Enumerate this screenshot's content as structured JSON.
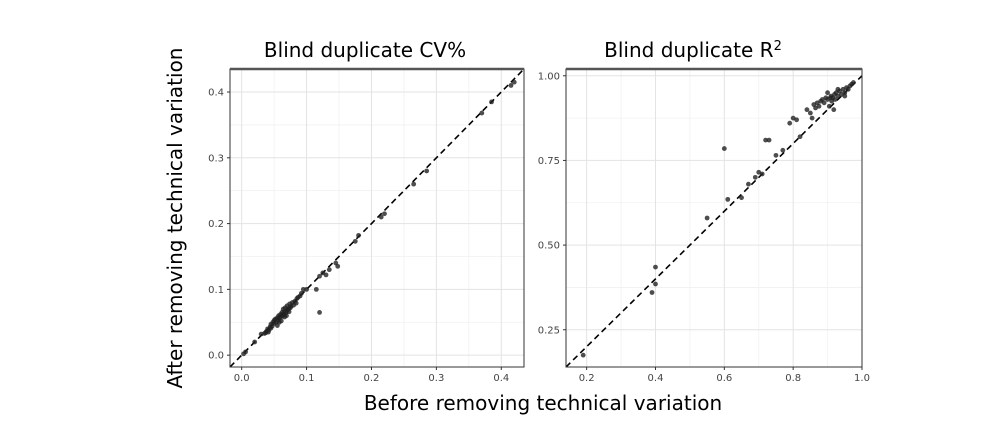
{
  "xlabel": "Before removing technical variation",
  "ylabel": "After removing technical variation",
  "chart_data": [
    {
      "type": "scatter",
      "title": "Blind duplicate CV%",
      "xlim": [
        -0.018,
        0.435
      ],
      "ylim": [
        -0.018,
        0.435
      ],
      "xticks": [
        0.0,
        0.1,
        0.2,
        0.3,
        0.4
      ],
      "yticks": [
        0.0,
        0.1,
        0.2,
        0.3,
        0.4
      ],
      "xtick_labels": [
        "0.0",
        "0.1",
        "0.2",
        "0.3",
        "0.4"
      ],
      "ytick_labels": [
        "0.0",
        "0.1",
        "0.2",
        "0.3",
        "0.4"
      ],
      "reference_line": "y = x",
      "grid": true,
      "points": [
        [
          0.003,
          0.002
        ],
        [
          0.006,
          0.005
        ],
        [
          0.02,
          0.02
        ],
        [
          0.03,
          0.032
        ],
        [
          0.035,
          0.033
        ],
        [
          0.038,
          0.036
        ],
        [
          0.04,
          0.04
        ],
        [
          0.042,
          0.038
        ],
        [
          0.044,
          0.043
        ],
        [
          0.045,
          0.047
        ],
        [
          0.047,
          0.044
        ],
        [
          0.048,
          0.05
        ],
        [
          0.05,
          0.048
        ],
        [
          0.05,
          0.053
        ],
        [
          0.052,
          0.055
        ],
        [
          0.053,
          0.05
        ],
        [
          0.055,
          0.057
        ],
        [
          0.056,
          0.053
        ],
        [
          0.057,
          0.06
        ],
        [
          0.058,
          0.056
        ],
        [
          0.06,
          0.062
        ],
        [
          0.06,
          0.058
        ],
        [
          0.062,
          0.065
        ],
        [
          0.063,
          0.06
        ],
        [
          0.064,
          0.07
        ],
        [
          0.065,
          0.062
        ],
        [
          0.066,
          0.066
        ],
        [
          0.067,
          0.072
        ],
        [
          0.068,
          0.064
        ],
        [
          0.07,
          0.075
        ],
        [
          0.07,
          0.068
        ],
        [
          0.072,
          0.07
        ],
        [
          0.074,
          0.078
        ],
        [
          0.075,
          0.072
        ],
        [
          0.076,
          0.074
        ],
        [
          0.078,
          0.08
        ],
        [
          0.08,
          0.076
        ],
        [
          0.082,
          0.082
        ],
        [
          0.084,
          0.079
        ],
        [
          0.085,
          0.086
        ],
        [
          0.087,
          0.088
        ],
        [
          0.09,
          0.09
        ],
        [
          0.092,
          0.094
        ],
        [
          0.095,
          0.1
        ],
        [
          0.1,
          0.1
        ],
        [
          0.055,
          0.045
        ],
        [
          0.058,
          0.05
        ],
        [
          0.061,
          0.052
        ],
        [
          0.066,
          0.058
        ],
        [
          0.069,
          0.06
        ],
        [
          0.073,
          0.066
        ],
        [
          0.045,
          0.041
        ],
        [
          0.041,
          0.035
        ],
        [
          0.037,
          0.034
        ],
        [
          0.12,
          0.065
        ],
        [
          0.115,
          0.1
        ],
        [
          0.12,
          0.12
        ],
        [
          0.125,
          0.125
        ],
        [
          0.13,
          0.122
        ],
        [
          0.135,
          0.13
        ],
        [
          0.145,
          0.14
        ],
        [
          0.148,
          0.135
        ],
        [
          0.175,
          0.173
        ],
        [
          0.18,
          0.182
        ],
        [
          0.215,
          0.21
        ],
        [
          0.22,
          0.215
        ],
        [
          0.265,
          0.26
        ],
        [
          0.285,
          0.28
        ],
        [
          0.37,
          0.368
        ],
        [
          0.385,
          0.385
        ],
        [
          0.415,
          0.41
        ],
        [
          0.42,
          0.415
        ]
      ]
    },
    {
      "type": "scatter",
      "title": "Blind duplicate R",
      "title_superscript": "2",
      "xlim": [
        0.14,
        1.0
      ],
      "ylim": [
        0.14,
        1.02
      ],
      "xticks": [
        0.2,
        0.4,
        0.6,
        0.8,
        1.0
      ],
      "yticks": [
        0.25,
        0.5,
        0.75,
        1.0
      ],
      "xtick_labels": [
        "0.2",
        "0.4",
        "0.6",
        "0.8",
        "1.0"
      ],
      "ytick_labels": [
        "0.25",
        "0.50",
        "0.75",
        "1.00"
      ],
      "reference_line": "y = x",
      "grid": true,
      "points": [
        [
          0.19,
          0.175
        ],
        [
          0.39,
          0.36
        ],
        [
          0.4,
          0.435
        ],
        [
          0.4,
          0.385
        ],
        [
          0.55,
          0.58
        ],
        [
          0.6,
          0.785
        ],
        [
          0.61,
          0.635
        ],
        [
          0.65,
          0.64
        ],
        [
          0.67,
          0.68
        ],
        [
          0.69,
          0.7
        ],
        [
          0.7,
          0.715
        ],
        [
          0.71,
          0.71
        ],
        [
          0.72,
          0.81
        ],
        [
          0.73,
          0.81
        ],
        [
          0.75,
          0.765
        ],
        [
          0.77,
          0.78
        ],
        [
          0.79,
          0.86
        ],
        [
          0.8,
          0.875
        ],
        [
          0.81,
          0.87
        ],
        [
          0.82,
          0.82
        ],
        [
          0.84,
          0.9
        ],
        [
          0.85,
          0.89
        ],
        [
          0.855,
          0.875
        ],
        [
          0.86,
          0.915
        ],
        [
          0.865,
          0.905
        ],
        [
          0.87,
          0.92
        ],
        [
          0.875,
          0.91
        ],
        [
          0.88,
          0.925
        ],
        [
          0.885,
          0.93
        ],
        [
          0.89,
          0.92
        ],
        [
          0.895,
          0.935
        ],
        [
          0.9,
          0.93
        ],
        [
          0.905,
          0.91
        ],
        [
          0.91,
          0.94
        ],
        [
          0.912,
          0.925
        ],
        [
          0.915,
          0.935
        ],
        [
          0.92,
          0.945
        ],
        [
          0.922,
          0.93
        ],
        [
          0.925,
          0.95
        ],
        [
          0.93,
          0.94
        ],
        [
          0.935,
          0.955
        ],
        [
          0.94,
          0.945
        ],
        [
          0.945,
          0.96
        ],
        [
          0.95,
          0.95
        ],
        [
          0.955,
          0.965
        ],
        [
          0.96,
          0.96
        ],
        [
          0.965,
          0.97
        ],
        [
          0.97,
          0.975
        ],
        [
          0.975,
          0.98
        ],
        [
          0.93,
          0.96
        ],
        [
          0.918,
          0.9
        ],
        [
          0.908,
          0.935
        ],
        [
          0.9,
          0.95
        ],
        [
          0.95,
          0.94
        ]
      ]
    }
  ]
}
